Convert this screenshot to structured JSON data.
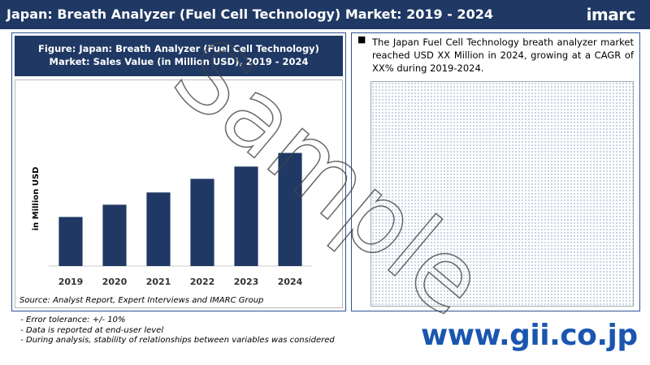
{
  "header": {
    "title": "Japan: Breath Analyzer (Fuel Cell Technology) Market: 2019 - 2024",
    "logo": "imarc"
  },
  "chart_data": {
    "type": "bar",
    "title": "Figure: Japan: Breath Analyzer (Fuel Cell Technology) Market: Sales Value (in Million USD), 2019 - 2024",
    "y_label": "in Million USD",
    "categories": [
      "2019",
      "2020",
      "2021",
      "2022",
      "2023",
      "2024"
    ],
    "values": [
      36,
      45,
      54,
      64,
      73,
      83
    ],
    "color": "#1f3864",
    "ylim": [
      0,
      100
    ],
    "source": "Source: Analyst Report, Expert Interviews and IMARC Group"
  },
  "summary": "The Japan Fuel Cell Technology breath analyzer market reached USD XX Million in 2024, growing at a CAGR of XX% during 2019-2024.",
  "notes": [
    "Error tolerance: +/- 10%",
    "Data is reported at end-user level",
    "During analysis, stability of relationships between variables was considered"
  ],
  "footer_url": "www.gii.co.jp",
  "watermark": "Sample"
}
